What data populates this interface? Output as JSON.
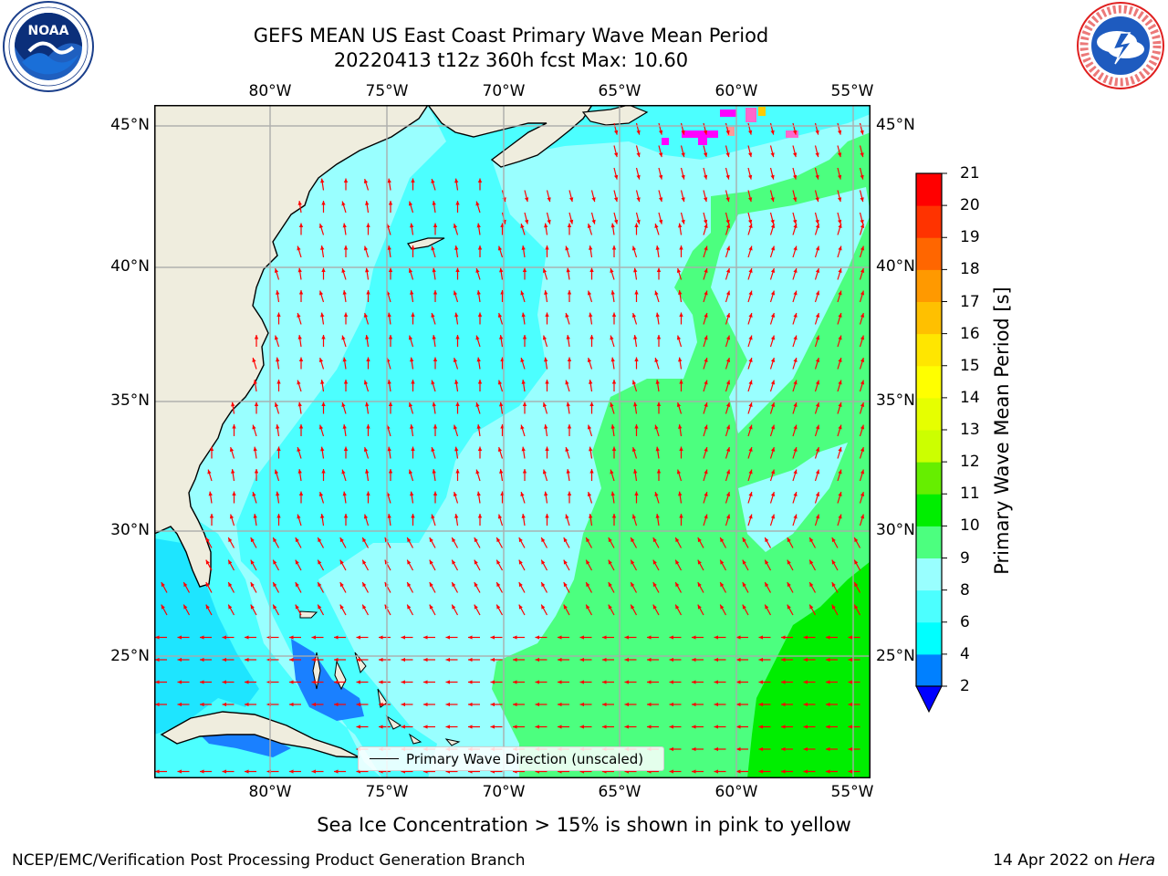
{
  "header": {
    "title_line1": "GEFS MEAN US East Coast Primary Wave Mean Period",
    "title_line2": "20220413 t12z 360h fcst   Max: 10.60"
  },
  "logos": {
    "left": "noaa-logo",
    "right": "national-weather-service-logo"
  },
  "map": {
    "lon_ticks": [
      "80°W",
      "75°W",
      "70°W",
      "65°W",
      "60°W",
      "55°W"
    ],
    "lat_ticks": [
      "45°N",
      "40°N",
      "35°N",
      "30°N",
      "25°N"
    ],
    "lat_ticks_right": [
      "45°N",
      "40°N",
      "35°N",
      "30°N",
      "25°N"
    ],
    "extent": {
      "lon_min": -85,
      "lon_max": -54.5,
      "lat_min": 20.5,
      "lat_max": 46
    },
    "gridlines": true,
    "land_color": "#efedde",
    "arrow_color": "#ff0000",
    "period_field_regions": [
      {
        "level": "6-8",
        "color": "#33ffff",
        "description": "near-coast shelf waters"
      },
      {
        "level": "8-9",
        "color": "#99ffff",
        "description": "open Atlantic west of 65W"
      },
      {
        "level": "9-10",
        "color": "#4cff7f",
        "description": "central and eastern Atlantic"
      },
      {
        "level": "10-11",
        "color": "#00ee00",
        "description": "southeast corner"
      },
      {
        "level": "4-6",
        "color": "#00ccff",
        "description": "Gulf of Mexico"
      },
      {
        "level": "2-4",
        "color": "#0080ff",
        "description": "Bahamas banks"
      }
    ]
  },
  "colorbar": {
    "label": "Primary Wave Mean Period [s]",
    "ticks": [
      "2",
      "4",
      "6",
      "8",
      "9",
      "10",
      "11",
      "12",
      "13",
      "14",
      "15",
      "16",
      "17",
      "18",
      "19",
      "20",
      "21"
    ],
    "colors": [
      "#0000ff",
      "#0080ff",
      "#00ffff",
      "#4cffff",
      "#99ffff",
      "#4cff7f",
      "#00ee00",
      "#66ee00",
      "#ccff00",
      "#e6ff00",
      "#ffff00",
      "#ffe600",
      "#ffc000",
      "#ff9900",
      "#ff6600",
      "#ff3300",
      "#ff0000"
    ],
    "underflow_color": "#0000ff"
  },
  "legend": {
    "label": "Primary Wave Direction (unscaled)"
  },
  "sea_ice_note": "Sea Ice Concentration > 15% is shown in pink to yellow",
  "footer": {
    "left": "NCEP/EMC/Verification Post Processing Product Generation Branch",
    "date": "14 Apr 2022 on ",
    "machine": "Hera"
  }
}
